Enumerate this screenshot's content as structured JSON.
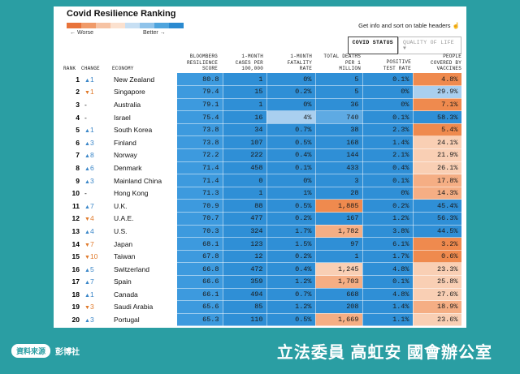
{
  "title": "Covid Resilience Ranking",
  "legend": {
    "worse": "← Worse",
    "better": "Better →",
    "colors": [
      "#e8733a",
      "#f09a68",
      "#f6c3a4",
      "#fbe1cf",
      "#c7dff3",
      "#8fc3ea",
      "#4ea4dd",
      "#2b8ad0"
    ]
  },
  "hint": "Get info and sort on table headers",
  "tabs": [
    {
      "label": "COVID STATUS"
    },
    {
      "label": "QUALITY OF LIFE"
    }
  ],
  "headers": {
    "rank": "RANK",
    "change": "CHANGE",
    "economy": "ECONOMY",
    "score": [
      "BLOOMBERG",
      "RESILIENCE",
      "SCORE"
    ],
    "cases": [
      "1-MONTH",
      "CASES PER",
      "100,000"
    ],
    "fatality": [
      "1-MONTH",
      "FATALITY",
      "RATE"
    ],
    "deaths": [
      "TOTAL DEATHS",
      "PER 1",
      "MILLION"
    ],
    "positive": [
      "POSITIVE",
      "TEST RATE"
    ],
    "vaccines": [
      "PEOPLE",
      "COVERED BY",
      "VACCINES"
    ]
  },
  "colors": {
    "score": "#3d9ade",
    "blue_dark": "#2f8fd6",
    "blue_mid": "#5eaae3",
    "blue_light": "#a9cfef",
    "orange_dark": "#ef8a4e",
    "orange_mid": "#f5ae84",
    "orange_light": "#f9cfb4"
  },
  "rows": [
    {
      "rank": "1",
      "dir": "up",
      "change": "1",
      "economy": "New Zealand",
      "score": "80.8",
      "cases": "1",
      "fatality": "0%",
      "deaths": "5",
      "positive": "0.1%",
      "vaccines": "4.8%",
      "cc": [
        "blue_dark",
        "blue_dark",
        "blue_dark",
        "blue_dark",
        "orange_dark"
      ]
    },
    {
      "rank": "2",
      "dir": "down",
      "change": "1",
      "economy": "Singapore",
      "score": "79.4",
      "cases": "15",
      "fatality": "0.2%",
      "deaths": "5",
      "positive": "0%",
      "vaccines": "29.9%",
      "cc": [
        "blue_dark",
        "blue_dark",
        "blue_dark",
        "blue_dark",
        "blue_light"
      ]
    },
    {
      "rank": "3",
      "dir": "none",
      "change": "-",
      "economy": "Australia",
      "score": "79.1",
      "cases": "1",
      "fatality": "0%",
      "deaths": "36",
      "positive": "0%",
      "vaccines": "7.1%",
      "cc": [
        "blue_dark",
        "blue_dark",
        "blue_dark",
        "blue_dark",
        "orange_dark"
      ]
    },
    {
      "rank": "4",
      "dir": "none",
      "change": "-",
      "economy": "Israel",
      "score": "75.4",
      "cases": "16",
      "fatality": "4%",
      "deaths": "740",
      "positive": "0.1%",
      "vaccines": "58.3%",
      "cc": [
        "blue_dark",
        "blue_light",
        "blue_mid",
        "blue_dark",
        "blue_dark"
      ]
    },
    {
      "rank": "5",
      "dir": "up",
      "change": "1",
      "economy": "South Korea",
      "score": "73.8",
      "cases": "34",
      "fatality": "0.7%",
      "deaths": "38",
      "positive": "2.3%",
      "vaccines": "5.4%",
      "cc": [
        "blue_dark",
        "blue_dark",
        "blue_dark",
        "blue_dark",
        "orange_dark"
      ]
    },
    {
      "rank": "6",
      "dir": "up",
      "change": "3",
      "economy": "Finland",
      "score": "73.8",
      "cases": "107",
      "fatality": "0.5%",
      "deaths": "168",
      "positive": "1.4%",
      "vaccines": "24.1%",
      "cc": [
        "blue_dark",
        "blue_dark",
        "blue_dark",
        "blue_dark",
        "orange_light"
      ]
    },
    {
      "rank": "7",
      "dir": "up",
      "change": "8",
      "economy": "Norway",
      "score": "72.2",
      "cases": "222",
      "fatality": "0.4%",
      "deaths": "144",
      "positive": "2.1%",
      "vaccines": "21.9%",
      "cc": [
        "blue_dark",
        "blue_dark",
        "blue_dark",
        "blue_dark",
        "orange_light"
      ]
    },
    {
      "rank": "8",
      "dir": "up",
      "change": "6",
      "economy": "Denmark",
      "score": "71.4",
      "cases": "458",
      "fatality": "0.1%",
      "deaths": "433",
      "positive": "0.4%",
      "vaccines": "26.1%",
      "cc": [
        "blue_dark",
        "blue_dark",
        "blue_dark",
        "blue_dark",
        "orange_light"
      ]
    },
    {
      "rank": "9",
      "dir": "up",
      "change": "3",
      "economy": "Mainland China",
      "score": "71.4",
      "cases": "0",
      "fatality": "0%",
      "deaths": "3",
      "positive": "0.1%",
      "vaccines": "17.8%",
      "cc": [
        "blue_dark",
        "blue_dark",
        "blue_dark",
        "blue_dark",
        "orange_mid"
      ]
    },
    {
      "rank": "10",
      "dir": "none",
      "change": "-",
      "economy": "Hong Kong",
      "score": "71.3",
      "cases": "1",
      "fatality": "1%",
      "deaths": "28",
      "positive": "0%",
      "vaccines": "14.3%",
      "cc": [
        "blue_dark",
        "blue_dark",
        "blue_dark",
        "blue_dark",
        "orange_mid"
      ]
    },
    {
      "rank": "11",
      "dir": "up",
      "change": "7",
      "economy": "U.K.",
      "score": "70.9",
      "cases": "88",
      "fatality": "0.5%",
      "deaths": "1,885",
      "positive": "0.2%",
      "vaccines": "45.4%",
      "cc": [
        "blue_dark",
        "blue_dark",
        "orange_dark",
        "blue_dark",
        "blue_dark"
      ]
    },
    {
      "rank": "12",
      "dir": "down",
      "change": "4",
      "economy": "U.A.E.",
      "score": "70.7",
      "cases": "477",
      "fatality": "0.2%",
      "deaths": "167",
      "positive": "1.2%",
      "vaccines": "56.3%",
      "cc": [
        "blue_dark",
        "blue_dark",
        "blue_dark",
        "blue_dark",
        "blue_dark"
      ]
    },
    {
      "rank": "13",
      "dir": "up",
      "change": "4",
      "economy": "U.S.",
      "score": "70.3",
      "cases": "324",
      "fatality": "1.7%",
      "deaths": "1,782",
      "positive": "3.8%",
      "vaccines": "44.5%",
      "cc": [
        "blue_dark",
        "blue_dark",
        "orange_mid",
        "blue_dark",
        "blue_dark"
      ]
    },
    {
      "rank": "14",
      "dir": "down",
      "change": "7",
      "economy": "Japan",
      "score": "68.1",
      "cases": "123",
      "fatality": "1.5%",
      "deaths": "97",
      "positive": "6.1%",
      "vaccines": "3.2%",
      "cc": [
        "blue_dark",
        "blue_dark",
        "blue_dark",
        "blue_dark",
        "orange_dark"
      ]
    },
    {
      "rank": "15",
      "dir": "down",
      "change": "10",
      "economy": "Taiwan",
      "score": "67.8",
      "cases": "12",
      "fatality": "0.2%",
      "deaths": "1",
      "positive": "1.7%",
      "vaccines": "0.6%",
      "cc": [
        "blue_dark",
        "blue_dark",
        "blue_dark",
        "blue_dark",
        "orange_dark"
      ]
    },
    {
      "rank": "16",
      "dir": "up",
      "change": "5",
      "economy": "Switzerland",
      "score": "66.8",
      "cases": "472",
      "fatality": "0.4%",
      "deaths": "1,245",
      "positive": "4.8%",
      "vaccines": "23.3%",
      "cc": [
        "blue_dark",
        "blue_dark",
        "orange_light",
        "blue_dark",
        "orange_light"
      ]
    },
    {
      "rank": "17",
      "dir": "up",
      "change": "7",
      "economy": "Spain",
      "score": "66.6",
      "cases": "359",
      "fatality": "1.2%",
      "deaths": "1,703",
      "positive": "0.1%",
      "vaccines": "25.8%",
      "cc": [
        "blue_dark",
        "blue_dark",
        "orange_mid",
        "blue_dark",
        "orange_light"
      ]
    },
    {
      "rank": "18",
      "dir": "up",
      "change": "1",
      "economy": "Canada",
      "score": "66.1",
      "cases": "494",
      "fatality": "0.7%",
      "deaths": "668",
      "positive": "4.8%",
      "vaccines": "27.6%",
      "cc": [
        "blue_dark",
        "blue_dark",
        "blue_dark",
        "blue_dark",
        "orange_light"
      ]
    },
    {
      "rank": "19",
      "dir": "down",
      "change": "3",
      "economy": "Saudi Arabia",
      "score": "65.6",
      "cases": "85",
      "fatality": "1.2%",
      "deaths": "208",
      "positive": "1.4%",
      "vaccines": "18.9%",
      "cc": [
        "blue_dark",
        "blue_dark",
        "blue_dark",
        "blue_dark",
        "orange_mid"
      ]
    },
    {
      "rank": "20",
      "dir": "up",
      "change": "3",
      "economy": "Portugal",
      "score": "65.3",
      "cases": "110",
      "fatality": "0.5%",
      "deaths": "1,669",
      "positive": "1.1%",
      "vaccines": "23.6%",
      "cc": [
        "blue_dark",
        "blue_dark",
        "orange_mid",
        "blue_dark",
        "orange_light"
      ]
    }
  ],
  "footer": {
    "source_badge": "資料來源",
    "source": "彭博社",
    "office": "立法委員 高虹安 國會辦公室"
  }
}
